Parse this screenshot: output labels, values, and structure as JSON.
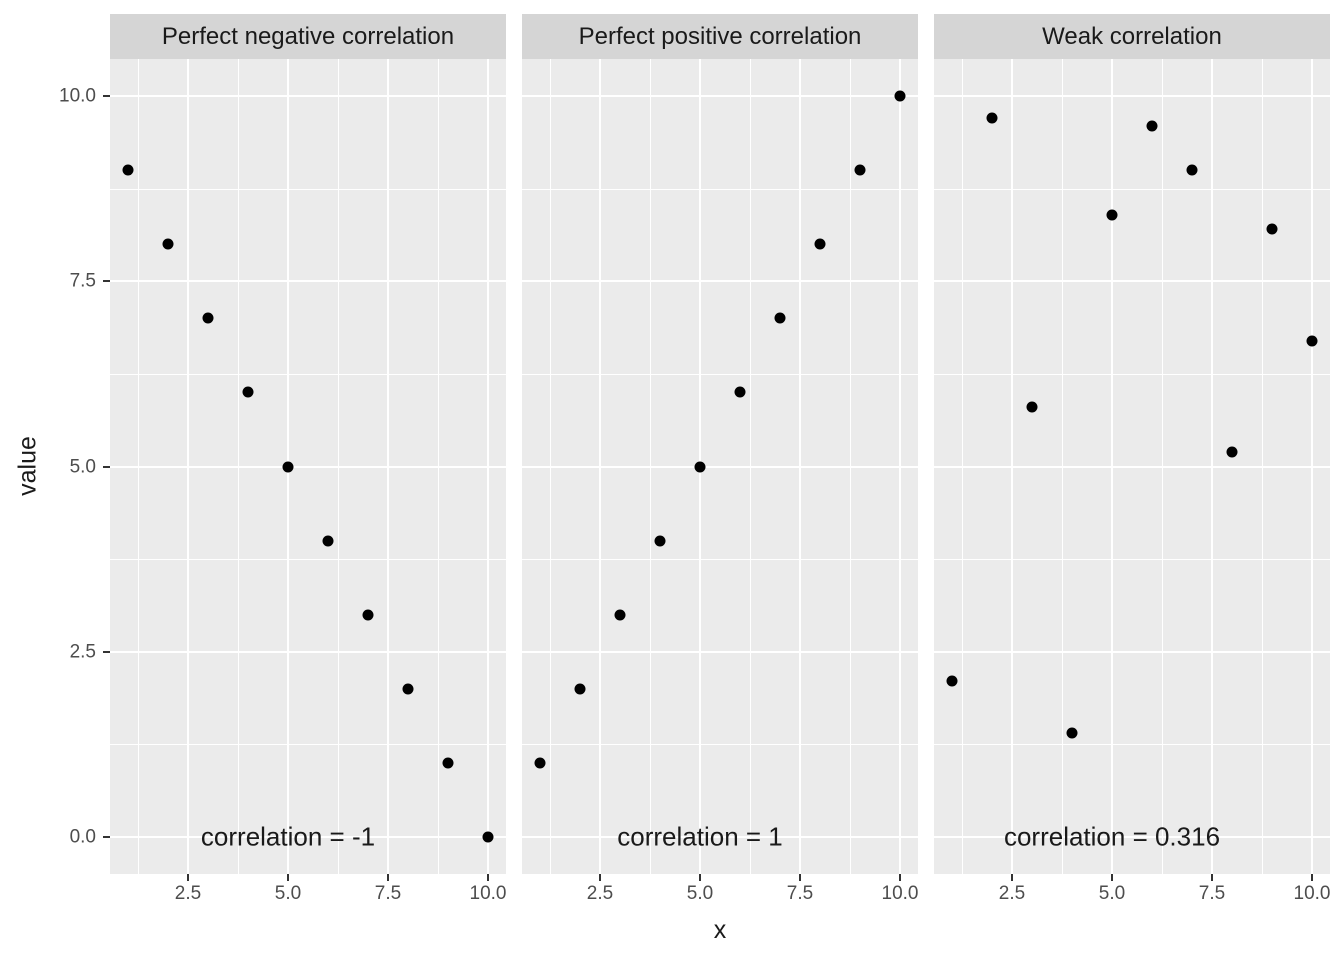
{
  "chart_data": {
    "type": "scatter",
    "title": "",
    "xlabel": "x",
    "ylabel": "value",
    "x_range": [
      0.55,
      10.45
    ],
    "y_range": [
      -0.5,
      10.5
    ],
    "x_ticks": [
      2.5,
      5.0,
      7.5,
      10.0
    ],
    "x_tick_labels": [
      "2.5",
      "5.0",
      "7.5",
      "10.0"
    ],
    "y_ticks": [
      0.0,
      2.5,
      5.0,
      7.5,
      10.0
    ],
    "y_tick_labels": [
      "0.0",
      "2.5",
      "5.0",
      "7.5",
      "10.0"
    ],
    "x_minor_ticks": [
      1.25,
      3.75,
      6.25,
      8.75
    ],
    "y_minor_ticks": [
      1.25,
      3.75,
      6.25,
      8.75
    ],
    "grid": "major-and-minor-white-on-gray",
    "legend": "none",
    "facets": [
      {
        "label": "Perfect negative correlation",
        "annotation": "correlation = -1",
        "annotation_x": 5,
        "annotation_y": 0,
        "x": [
          1,
          2,
          3,
          4,
          5,
          6,
          7,
          8,
          9,
          10
        ],
        "y": [
          9,
          8,
          7,
          6,
          5,
          4,
          3,
          2,
          1,
          0
        ]
      },
      {
        "label": "Perfect positive correlation",
        "annotation": "correlation = 1",
        "annotation_x": 5,
        "annotation_y": 0,
        "x": [
          1,
          2,
          3,
          4,
          5,
          6,
          7,
          8,
          9,
          10
        ],
        "y": [
          1,
          2,
          3,
          4,
          5,
          6,
          7,
          8,
          9,
          10
        ]
      },
      {
        "label": "Weak correlation",
        "annotation": "correlation = 0.316",
        "annotation_x": 5,
        "annotation_y": 0,
        "x": [
          1,
          2,
          3,
          4,
          5,
          6,
          7,
          8,
          9,
          10
        ],
        "y": [
          2.1,
          9.7,
          5.8,
          1.4,
          8.4,
          9.6,
          9.0,
          5.2,
          8.2,
          6.7
        ]
      }
    ]
  },
  "colors": {
    "panel_bg": "#EBEBEB",
    "strip_bg": "#D5D5D5",
    "grid": "#FFFFFF",
    "point": "#000000",
    "tick_label": "#4D4D4D",
    "tick_mark": "#333333",
    "text": "#1A1A1A",
    "page_bg": "#FFFFFF"
  }
}
